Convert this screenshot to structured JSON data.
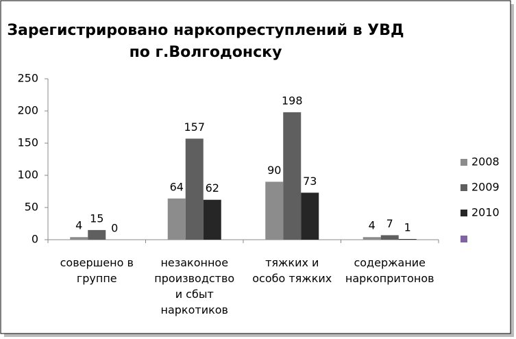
{
  "chart_data": {
    "type": "bar",
    "title": [
      "Зарегистрировано наркопреступлений в УВД",
      "по г.Волгодонску"
    ],
    "categories": [
      "совершено в группе",
      "незаконное производство и сбыт наркотиков",
      "тяжких и особо тяжких",
      "содержание наркопритонов"
    ],
    "series": [
      {
        "name": "2008",
        "color": "#8c8c8c",
        "values": [
          4,
          64,
          90,
          4
        ]
      },
      {
        "name": "2009",
        "color": "#5f5f5f",
        "values": [
          15,
          157,
          198,
          7
        ]
      },
      {
        "name": "2010",
        "color": "#262626",
        "values": [
          0,
          62,
          73,
          1
        ]
      }
    ],
    "ylim": [
      0,
      250
    ],
    "yticks": [
      0,
      50,
      100,
      150,
      200,
      250
    ],
    "grid": false,
    "legend": "right"
  }
}
